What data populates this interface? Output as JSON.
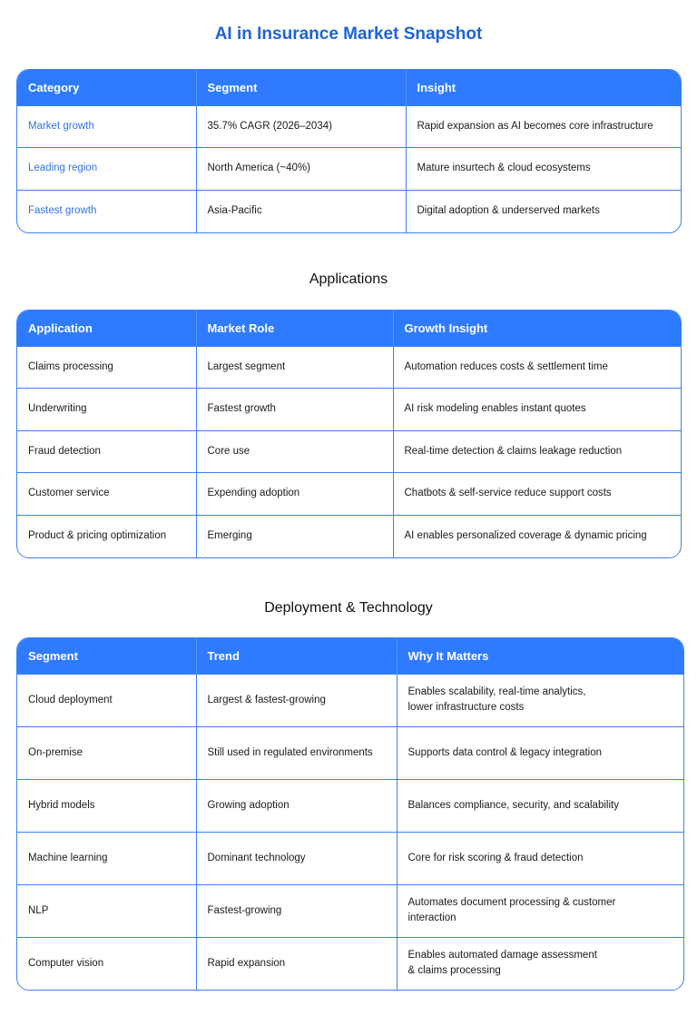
{
  "title": "AI in Insurance Market Snapshot",
  "colors": {
    "header_bg": "#2f7bff",
    "border": "#3d80f5",
    "title": "#1d63d6"
  },
  "tables": [
    {
      "heading": "",
      "headers": [
        "Category",
        "Segment",
        "Insight"
      ],
      "rows": [
        [
          "Market growth",
          "35.7% CAGR (2026–2034)",
          "Rapid expansion as AI becomes core infrastructure"
        ],
        [
          "Leading region",
          "North America (~40%)",
          "Mature insurtech & cloud ecosystems"
        ],
        [
          "Fastest growth",
          "Asia-Pacific",
          "Digital adoption & underserved markets"
        ]
      ]
    },
    {
      "heading": "Applications",
      "headers": [
        "Application",
        "Market Role",
        "Growth Insight"
      ],
      "rows": [
        [
          "Claims processing",
          "Largest segment",
          "Automation reduces costs & settlement time"
        ],
        [
          "Underwriting",
          "Fastest growth",
          "AI risk modeling enables instant quotes"
        ],
        [
          "Fraud detection",
          "Core use",
          "Real-time detection & claims leakage reduction"
        ],
        [
          "Customer service",
          "Expending adoption",
          "Chatbots & self-service reduce support costs"
        ],
        [
          "Product & pricing optimization",
          "Emerging",
          "AI enables personalized coverage & dynamic pricing"
        ]
      ]
    },
    {
      "heading": "Deployment & Technology",
      "headers": [
        "Segment",
        "Trend",
        "Why It Matters"
      ],
      "rows": [
        [
          "Cloud deployment",
          "Largest & fastest-growing",
          "Enables scalability, real-time analytics,\nlower infrastructure costs"
        ],
        [
          "On-premise",
          "Still used in regulated environments",
          "Supports data control & legacy integration"
        ],
        [
          "Hybrid models",
          "Growing adoption",
          "Balances compliance, security, and scalability"
        ],
        [
          "Machine learning",
          "Dominant technology",
          "Core for risk scoring & fraud detection"
        ],
        [
          "NLP",
          "Fastest-growing",
          "Automates document processing & customer\ninteraction"
        ],
        [
          "Computer vision",
          "Rapid expansion",
          "Enables automated damage assessment\n& claims processing"
        ]
      ]
    }
  ]
}
